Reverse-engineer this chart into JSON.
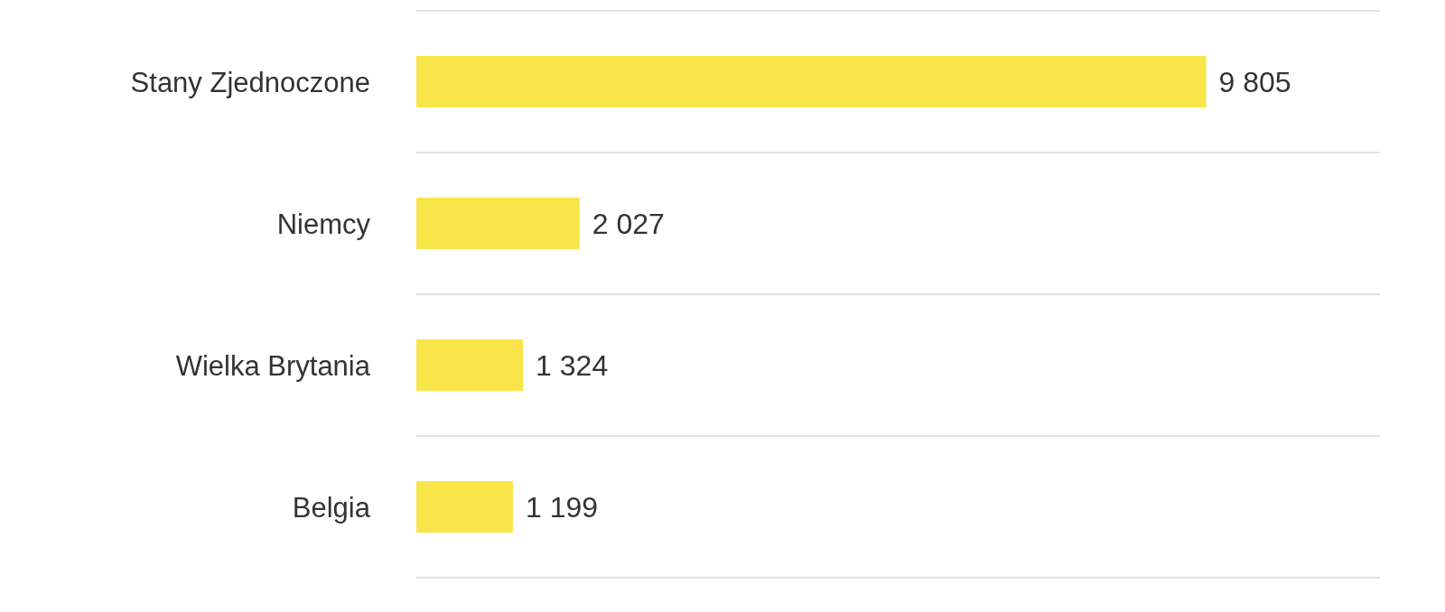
{
  "chart_data": {
    "type": "bar",
    "orientation": "horizontal",
    "categories": [
      "Stany Zjednoczone",
      "Niemcy",
      "Wielka Brytania",
      "Belgia"
    ],
    "values": [
      9805,
      2027,
      1324,
      1199
    ],
    "value_labels": [
      "9 805",
      "2 027",
      "1 324",
      "1 199"
    ],
    "color": "#f8e54a",
    "grid": "y",
    "legend": false
  }
}
